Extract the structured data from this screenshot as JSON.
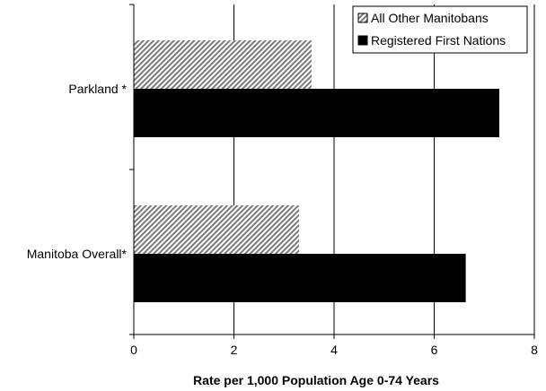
{
  "chart_data": {
    "type": "bar",
    "orientation": "horizontal",
    "categories": [
      "Parkland *",
      "Manitoba Overall*"
    ],
    "series": [
      {
        "name": "All Other Manitobans",
        "values": [
          3.55,
          3.3
        ],
        "color": "#aaaaaa",
        "pattern": "diagonal-hatch"
      },
      {
        "name": "Registered First Nations",
        "values": [
          7.3,
          6.63
        ],
        "color": "#000000",
        "pattern": "solid"
      }
    ],
    "xlabel": "Rate per 1,000 Population Age 0-74 Years",
    "ylabel": "",
    "xlim": [
      0,
      8
    ],
    "xticks": [
      0,
      2,
      4,
      6,
      8
    ],
    "grid": "vertical",
    "legend_position": "top-right"
  }
}
